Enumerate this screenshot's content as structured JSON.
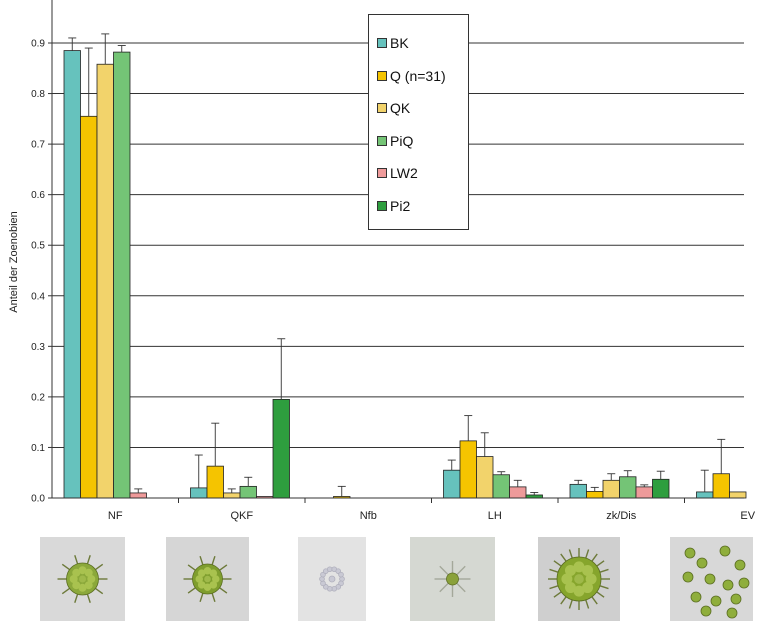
{
  "chart_data": {
    "type": "bar",
    "ylabel": "Anteil der Zoenobien",
    "ylim": [
      0,
      1.0
    ],
    "yticks": [
      "0.0",
      "0.1",
      "0.2",
      "0.3",
      "0.4",
      "0.5",
      "0.6",
      "0.7",
      "0.8",
      "0.9"
    ],
    "categories": [
      "NF",
      "QKF",
      "Nfb",
      "LH",
      "zk/Dis",
      "EV"
    ],
    "grid": true,
    "legend_position": "top-center",
    "series": [
      {
        "name": "BK",
        "color": "#66c2bd",
        "values": [
          0.885,
          0.02,
          0.0,
          0.055,
          0.027,
          0.012
        ],
        "errors": [
          0.025,
          0.065,
          0.0,
          0.02,
          0.008,
          0.043
        ]
      },
      {
        "name": "Q (n=31)",
        "color": "#f5c400",
        "values": [
          0.755,
          0.063,
          0.003,
          0.113,
          0.013,
          0.048
        ],
        "errors": [
          0.135,
          0.085,
          0.02,
          0.05,
          0.008,
          0.068
        ]
      },
      {
        "name": "QK",
        "color": "#f2d36b",
        "values": [
          0.858,
          0.01,
          0.0,
          0.082,
          0.035,
          0.012
        ],
        "errors": [
          0.06,
          0.008,
          0.0,
          0.047,
          0.013,
          0.0
        ]
      },
      {
        "name": "PiQ",
        "color": "#74c476",
        "values": [
          0.882,
          0.023,
          0.0,
          0.046,
          0.042,
          null
        ],
        "errors": [
          0.013,
          0.018,
          0.0,
          0.006,
          0.012,
          null
        ]
      },
      {
        "name": "LW2",
        "color": "#ee9a9a",
        "values": [
          0.01,
          0.003,
          0.0,
          0.022,
          0.022,
          null
        ],
        "errors": [
          0.008,
          0.0,
          0.0,
          0.013,
          0.004,
          null
        ]
      },
      {
        "name": "Pi2",
        "color": "#2e9e3e",
        "values": [
          0.0,
          0.195,
          0.0,
          0.006,
          0.037,
          null
        ],
        "errors": [
          0.0,
          0.12,
          0.0,
          0.005,
          0.016,
          null
        ]
      }
    ]
  },
  "images": [
    {
      "name": "thumb-nf",
      "kind": "star-colony",
      "bg": "#d9d9d9",
      "cell": "#8ba83a"
    },
    {
      "name": "thumb-qkf",
      "kind": "small-star-colony",
      "bg": "#d6d6d6",
      "cell": "#7f9e2e"
    },
    {
      "name": "thumb-nfb",
      "kind": "pale-colony",
      "bg": "#e3e3e3",
      "cell": "#c9c9d4"
    },
    {
      "name": "thumb-lh",
      "kind": "tiny-colony",
      "bg": "#d5d8d2",
      "cell": "#8aa13a"
    },
    {
      "name": "thumb-zkdis",
      "kind": "large-spiky-colony",
      "bg": "#cfcfcf",
      "cell": "#86a52c"
    },
    {
      "name": "thumb-ev",
      "kind": "scattered-cells",
      "bg": "#d8d8d8",
      "cell": "#8fae3c"
    }
  ]
}
